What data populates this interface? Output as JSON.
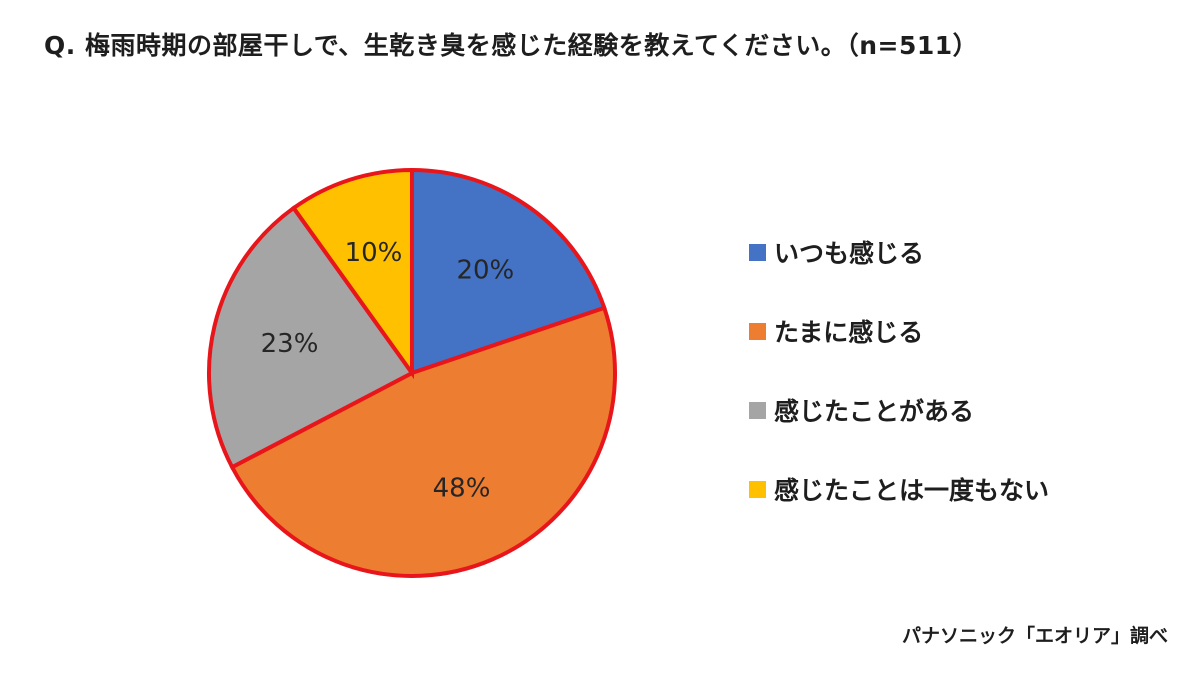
{
  "chart_data": {
    "type": "pie",
    "title": "Q. 梅雨時期の部屋干しで、生乾き臭を感じた経験を教えてください。（n=511）",
    "categories": [
      "いつも感じる",
      "たまに感じる",
      "感じたことがある",
      "感じたことは一度もない"
    ],
    "values": [
      20,
      48,
      23,
      10
    ],
    "data_labels": [
      "20%",
      "48%",
      "23%",
      "10%"
    ],
    "colors": [
      "#4472C4",
      "#ED7D31",
      "#A5A5A5",
      "#FFC000"
    ],
    "slice_outline_color": "#E8161B",
    "legend_position": "right",
    "start": "12 o'clock",
    "direction": "clockwise"
  },
  "source": "パナソニック「エオリア」調べ"
}
